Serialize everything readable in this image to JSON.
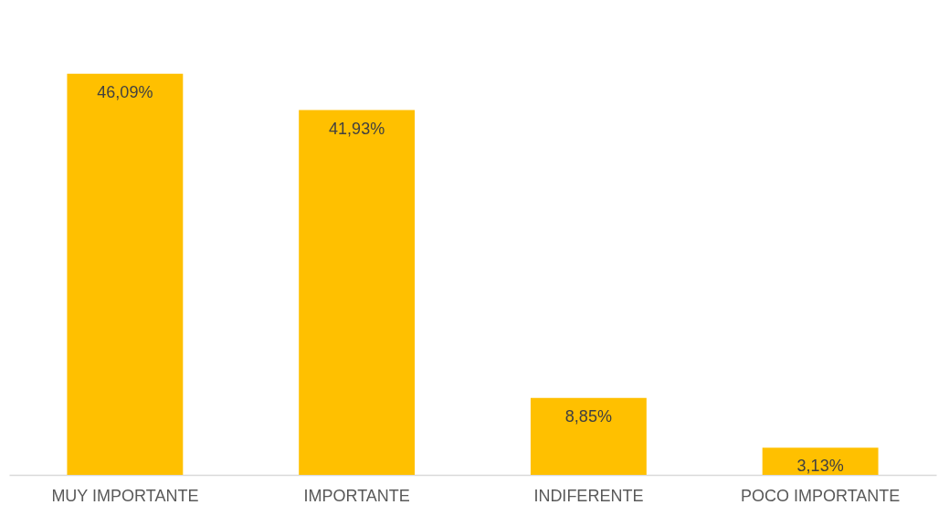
{
  "chart_data": {
    "type": "bar",
    "categories": [
      "MUY IMPORTANTE",
      "IMPORTANTE",
      "INDIFERENTE",
      "POCO IMPORTANTE"
    ],
    "values": [
      46.09,
      41.93,
      8.85,
      3.13
    ],
    "value_labels": [
      "46,09%",
      "41,93%",
      "8,85%",
      "3,13%"
    ],
    "color": "#ffc000"
  }
}
